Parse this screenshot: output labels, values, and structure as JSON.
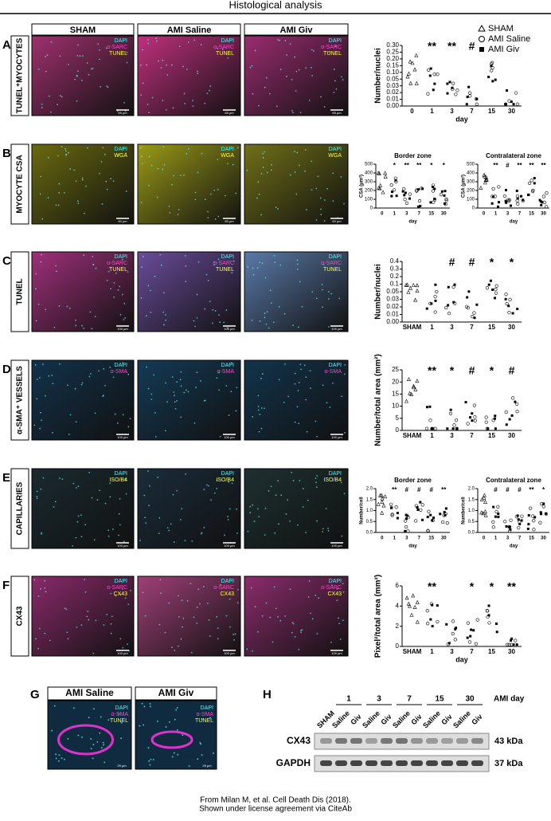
{
  "title": "Histological analysis",
  "columns": [
    "SHAM",
    "AMI Saline",
    "AMI Giv"
  ],
  "legend": [
    "SHAM",
    "AMI Saline",
    "AMI Giv"
  ],
  "panels": [
    {
      "letter": "A",
      "row_label": "TUNEL⁺MYOCYTES",
      "stains": [
        "DAPI",
        "α-SARC",
        "TUNEL"
      ],
      "stain_colors": [
        "#4ff",
        "#f4c",
        "#ff4"
      ],
      "tint": [
        "#a0306e",
        "#c0307e",
        "#9a2c70"
      ],
      "scale": "65 µm",
      "charts": [
        {
          "y_label": "Number/nuclei",
          "x_label": "day",
          "yticks": [
            "0.00",
            "0.01",
            "0.02",
            "0.03",
            "0.05",
            "0.10",
            "0.15",
            "0.20",
            "0.25",
            "0.30"
          ],
          "xticks": [
            "0",
            "1",
            "3",
            "7",
            "15",
            "30"
          ],
          "significance": [
            null,
            "**",
            "**",
            "#",
            null,
            null
          ]
        }
      ]
    },
    {
      "letter": "B",
      "row_label": "MYOCYTE CSA",
      "stains": [
        "DAPI",
        "WGA"
      ],
      "stain_colors": [
        "#4ff",
        "#ff4"
      ],
      "tint": [
        "#6a6a10",
        "#9a9a18",
        "#707018"
      ],
      "scale": "60 µm",
      "charts": [
        {
          "heading": "Border zone",
          "y_label": "CSA (µm²)",
          "x_label": "day",
          "yticks": [
            "0",
            "100",
            "200",
            "300",
            "400",
            "500"
          ],
          "xticks": [
            "0",
            "1",
            "3",
            "7",
            "15",
            "30"
          ],
          "significance": [
            null,
            "*",
            "**",
            "**",
            "*",
            "*"
          ]
        },
        {
          "heading": "Contralateral zone",
          "y_label": "CSA (µm²)",
          "x_label": "day",
          "yticks": [
            "0",
            "100",
            "200",
            "300",
            "400",
            "500"
          ],
          "xticks": [
            "0",
            "1",
            "3",
            "7",
            "15",
            "30"
          ],
          "significance": [
            null,
            "**",
            "#",
            "**",
            "**",
            "**"
          ]
        }
      ]
    },
    {
      "letter": "C",
      "row_label": "TUNEL",
      "stains": [
        "DAPI",
        "α-SARC",
        "TUNEL"
      ],
      "stain_colors": [
        "#4ff",
        "#f4c",
        "#ff4"
      ],
      "tint": [
        "#a0307a",
        "#6a4c9a",
        "#5a7aa8"
      ],
      "scale": "100 µm",
      "charts": [
        {
          "y_label": "Number/nuclei",
          "yticks": [
            "0.00",
            "0.01",
            "0.02",
            "0.03",
            "0.05",
            "0.1",
            "0.2",
            "0.3",
            "0.4"
          ],
          "xticks": [
            "SHAM",
            "1",
            "3",
            "7",
            "15",
            "30"
          ],
          "significance": [
            null,
            null,
            "#",
            "#",
            "*",
            "*"
          ]
        }
      ]
    },
    {
      "letter": "D",
      "row_label": "α-SMA⁺ VESSELS",
      "stains": [
        "DAPI",
        "α-SMA"
      ],
      "stain_colors": [
        "#4ff",
        "#f4c"
      ],
      "tint": [
        "#12324a",
        "#143a55",
        "#12344c"
      ],
      "scale": "100 µm",
      "charts": [
        {
          "y_label": "Number/total area (mm²)",
          "yticks": [
            "0",
            "5",
            "10",
            "15",
            "20",
            "25"
          ],
          "xticks": [
            "SHAM",
            "1",
            "3",
            "7",
            "15",
            "30"
          ],
          "significance": [
            null,
            "**",
            "*",
            "#",
            "*",
            "#"
          ]
        }
      ]
    },
    {
      "letter": "E",
      "row_label": "CAPILLARIES",
      "stains": [
        "DAPI",
        "ISO/B4"
      ],
      "stain_colors": [
        "#4ff",
        "#ff4"
      ],
      "tint": [
        "#1a2a30",
        "#1a2c3a",
        "#1e3030"
      ],
      "scale": "100 µm",
      "charts": [
        {
          "heading": "Border zone",
          "y_label": "Number/cell",
          "x_label": "day",
          "yticks": [
            "0.0",
            "0.5",
            "1.0",
            "1.5",
            "2.0"
          ],
          "xticks": [
            "0",
            "1",
            "3",
            "7",
            "15",
            "30"
          ],
          "significance": [
            null,
            "**",
            "#",
            "#",
            "#",
            "**"
          ]
        },
        {
          "heading": "Contralateral zone",
          "y_label": "Number/cell",
          "x_label": "day",
          "yticks": [
            "0.0",
            "0.5",
            "1.0",
            "1.5",
            "2.0"
          ],
          "xticks": [
            "0",
            "1",
            "3",
            "7",
            "15",
            "30"
          ],
          "significance": [
            null,
            "#",
            "#",
            "#",
            "**",
            "*"
          ]
        }
      ]
    },
    {
      "letter": "F",
      "row_label": "CX43",
      "stains": [
        "DAPI",
        "α-SARC",
        "CX43"
      ],
      "stain_colors": [
        "#4ff",
        "#f4c",
        "#ff4"
      ],
      "tint": [
        "#8a2a6a",
        "#a04078",
        "#8c2c6c"
      ],
      "scale": "100 µm",
      "charts": [
        {
          "y_label": "Pixel²/total area (mm²)",
          "x_label": "day",
          "yticks": [
            "0",
            "2",
            "4",
            "6"
          ],
          "xticks": [
            "SHAM",
            "1",
            "3",
            "7",
            "15",
            "30"
          ],
          "significance": [
            null,
            "**",
            null,
            "*",
            "*",
            "**"
          ]
        }
      ]
    }
  ],
  "panel_g": {
    "letter": "G",
    "columns": [
      "AMI Saline",
      "AMI Giv"
    ],
    "stains": [
      "DAPI",
      "α-SMA",
      "TUNEL"
    ],
    "stain_colors": [
      "#4ff",
      "#f4c",
      "#ff4"
    ],
    "scale": "25 µm"
  },
  "panel_h": {
    "letter": "H",
    "days": [
      "1",
      "3",
      "7",
      "15",
      "30"
    ],
    "day_label": "AMI day",
    "lanes": [
      "SHAM",
      "Saline",
      "Giv",
      "Saline",
      "Giv",
      "Saline",
      "Giv",
      "Saline",
      "Giv",
      "Saline",
      "Giv"
    ],
    "rows": [
      {
        "name": "CX43",
        "size": "43 kDa"
      },
      {
        "name": "GAPDH",
        "size": "37 kDa"
      }
    ]
  },
  "footer": [
    "From Milan M, et al. Cell Death Dis (2018).",
    "Shown under license agreement via CiteAb"
  ]
}
